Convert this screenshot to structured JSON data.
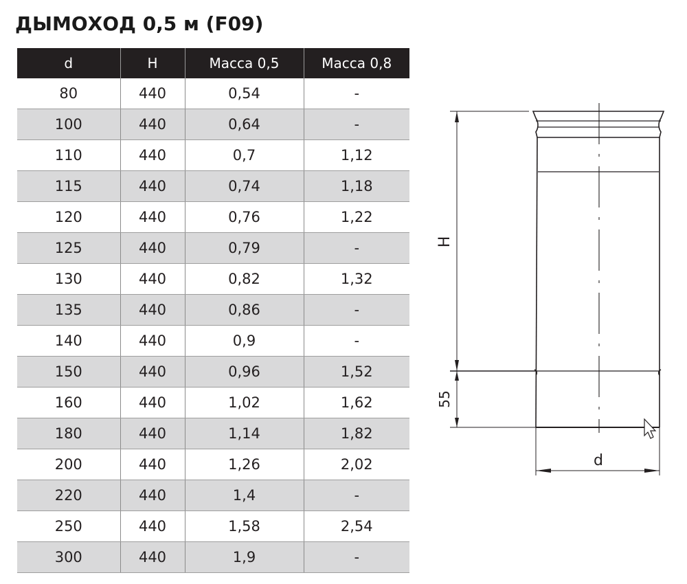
{
  "title": "ДЫМОХОД 0,5 м (F09)",
  "table": {
    "headers": [
      "d",
      "H",
      "Масса 0,5",
      "Масса 0,8"
    ],
    "rows": [
      [
        "80",
        "440",
        "0,54",
        "-"
      ],
      [
        "100",
        "440",
        "0,64",
        "-"
      ],
      [
        "110",
        "440",
        "0,7",
        "1,12"
      ],
      [
        "115",
        "440",
        "0,74",
        "1,18"
      ],
      [
        "120",
        "440",
        "0,76",
        "1,22"
      ],
      [
        "125",
        "440",
        "0,79",
        "-"
      ],
      [
        "130",
        "440",
        "0,82",
        "1,32"
      ],
      [
        "135",
        "440",
        "0,86",
        "-"
      ],
      [
        "140",
        "440",
        "0,9",
        "-"
      ],
      [
        "150",
        "440",
        "0,96",
        "1,52"
      ],
      [
        "160",
        "440",
        "1,02",
        "1,62"
      ],
      [
        "180",
        "440",
        "1,14",
        "1,82"
      ],
      [
        "200",
        "440",
        "1,26",
        "2,02"
      ],
      [
        "220",
        "440",
        "1,4",
        "-"
      ],
      [
        "250",
        "440",
        "1,58",
        "2,54"
      ],
      [
        "300",
        "440",
        "1,9",
        "-"
      ]
    ]
  },
  "drawing": {
    "label_h": "H",
    "label_55": "55",
    "label_d": "d"
  },
  "colors": {
    "header_bg": "#231f20",
    "header_text": "#ffffff",
    "row_alt": "#d9d9da",
    "row_plain": "#ffffff",
    "line": "#231f20"
  }
}
